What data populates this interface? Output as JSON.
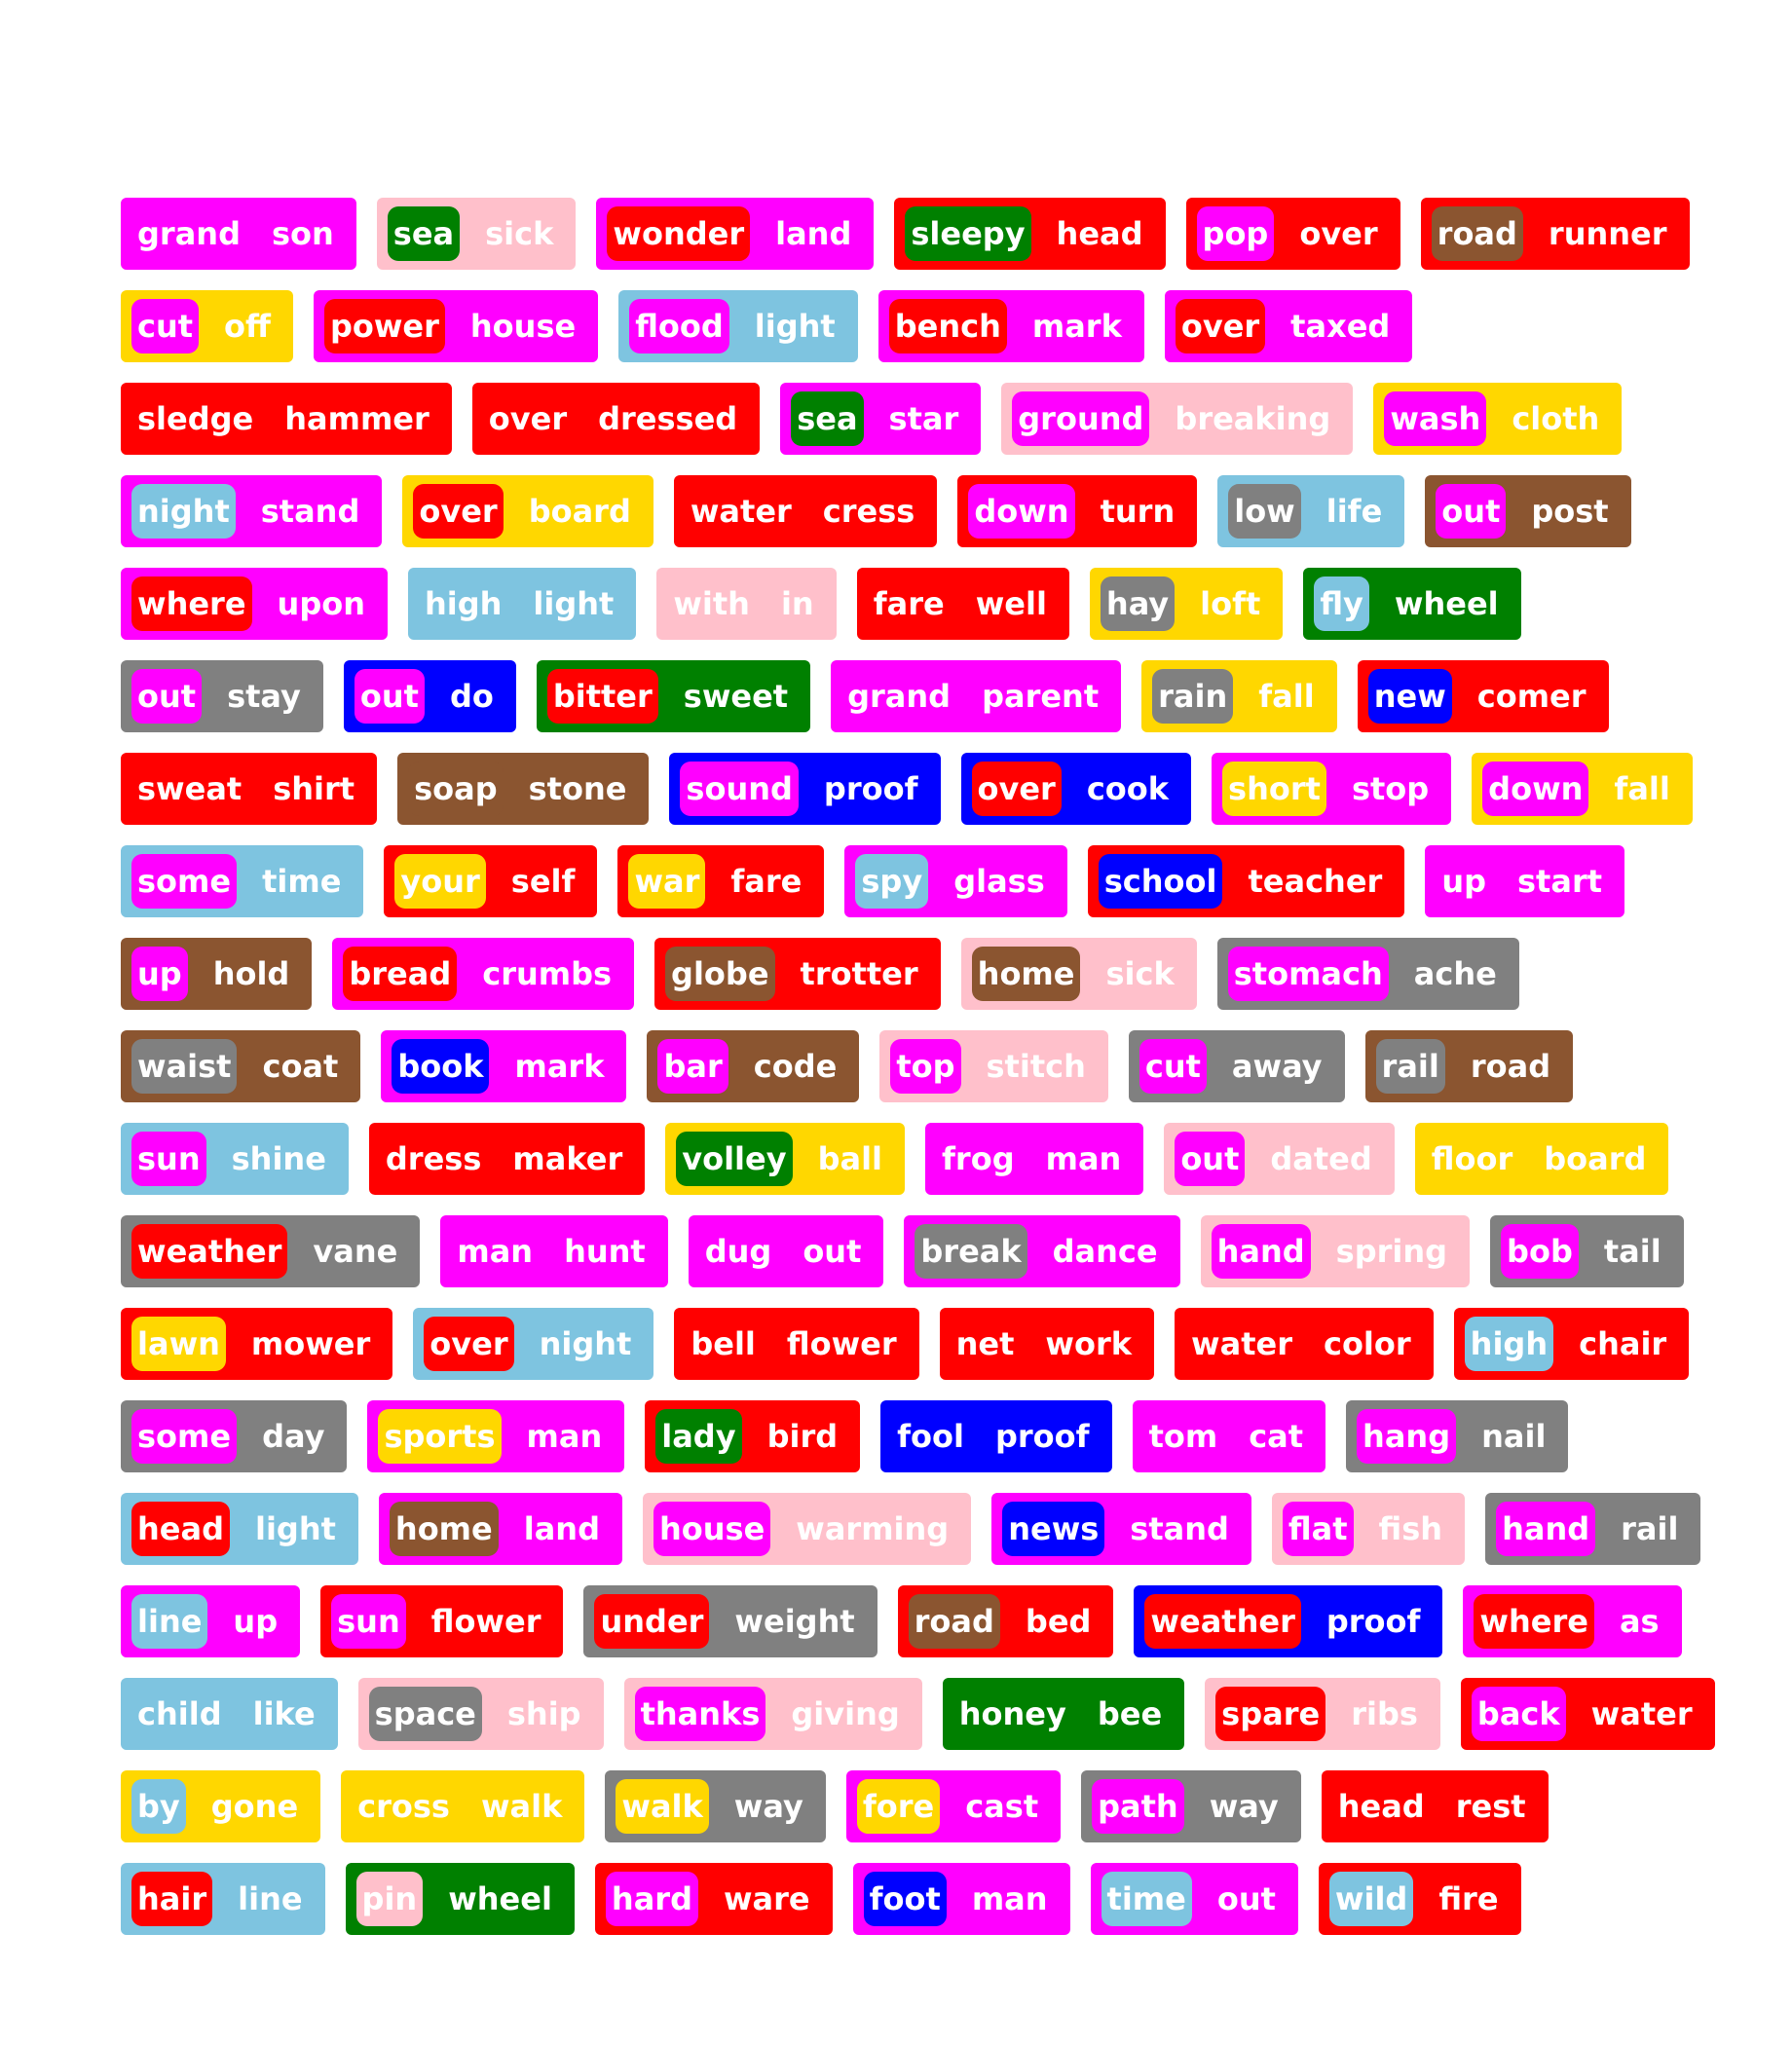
{
  "colors": {
    "magenta": "#ff00ff",
    "pink": "#ffc0cb",
    "red": "#ff0000",
    "green": "#008000",
    "brown": "#8b5530",
    "gold": "#ffd700",
    "sky": "#7ec4e0",
    "gray": "#808080",
    "blue": "#0000ff"
  },
  "rows": [
    [
      {
        "a": "grand",
        "b": "son",
        "bg": "magenta",
        "ibg": "magenta"
      },
      {
        "a": "sea",
        "b": "sick",
        "bg": "pink",
        "ibg": "green"
      },
      {
        "a": "wonder",
        "b": "land",
        "bg": "magenta",
        "ibg": "red"
      },
      {
        "a": "sleepy",
        "b": "head",
        "bg": "red",
        "ibg": "green"
      },
      {
        "a": "pop",
        "b": "over",
        "bg": "red",
        "ibg": "magenta"
      },
      {
        "a": "road",
        "b": "runner",
        "bg": "red",
        "ibg": "brown"
      }
    ],
    [
      {
        "a": "cut",
        "b": "off",
        "bg": "gold",
        "ibg": "magenta"
      },
      {
        "a": "power",
        "b": "house",
        "bg": "magenta",
        "ibg": "red"
      },
      {
        "a": "flood",
        "b": "light",
        "bg": "sky",
        "ibg": "magenta"
      },
      {
        "a": "bench",
        "b": "mark",
        "bg": "magenta",
        "ibg": "red"
      },
      {
        "a": "over",
        "b": "taxed",
        "bg": "magenta",
        "ibg": "red"
      }
    ],
    [
      {
        "a": "sledge",
        "b": "hammer",
        "bg": "red",
        "ibg": "red"
      },
      {
        "a": "over",
        "b": "dressed",
        "bg": "red",
        "ibg": "red"
      },
      {
        "a": "sea",
        "b": "star",
        "bg": "magenta",
        "ibg": "green"
      },
      {
        "a": "ground",
        "b": "breaking",
        "bg": "pink",
        "ibg": "magenta"
      },
      {
        "a": "wash",
        "b": "cloth",
        "bg": "gold",
        "ibg": "magenta"
      }
    ],
    [
      {
        "a": "night",
        "b": "stand",
        "bg": "magenta",
        "ibg": "sky"
      },
      {
        "a": "over",
        "b": "board",
        "bg": "gold",
        "ibg": "red"
      },
      {
        "a": "water",
        "b": "cress",
        "bg": "red",
        "ibg": "red"
      },
      {
        "a": "down",
        "b": "turn",
        "bg": "red",
        "ibg": "magenta"
      },
      {
        "a": "low",
        "b": "life",
        "bg": "sky",
        "ibg": "gray"
      },
      {
        "a": "out",
        "b": "post",
        "bg": "brown",
        "ibg": "magenta"
      }
    ],
    [
      {
        "a": "where",
        "b": "upon",
        "bg": "magenta",
        "ibg": "red"
      },
      {
        "a": "high",
        "b": "light",
        "bg": "sky",
        "ibg": "sky"
      },
      {
        "a": "with",
        "b": "in",
        "bg": "pink",
        "ibg": "pink"
      },
      {
        "a": "fare",
        "b": "well",
        "bg": "red",
        "ibg": "red"
      },
      {
        "a": "hay",
        "b": "loft",
        "bg": "gold",
        "ibg": "gray"
      },
      {
        "a": "fly",
        "b": "wheel",
        "bg": "green",
        "ibg": "sky"
      }
    ],
    [
      {
        "a": "out",
        "b": "stay",
        "bg": "gray",
        "ibg": "magenta"
      },
      {
        "a": "out",
        "b": "do",
        "bg": "blue",
        "ibg": "magenta"
      },
      {
        "a": "bitter",
        "b": "sweet",
        "bg": "green",
        "ibg": "red"
      },
      {
        "a": "grand",
        "b": "parent",
        "bg": "magenta",
        "ibg": "magenta"
      },
      {
        "a": "rain",
        "b": "fall",
        "bg": "gold",
        "ibg": "gray"
      },
      {
        "a": "new",
        "b": "comer",
        "bg": "red",
        "ibg": "blue"
      }
    ],
    [
      {
        "a": "sweat",
        "b": "shirt",
        "bg": "red",
        "ibg": "red"
      },
      {
        "a": "soap",
        "b": "stone",
        "bg": "brown",
        "ibg": "brown"
      },
      {
        "a": "sound",
        "b": "proof",
        "bg": "blue",
        "ibg": "magenta"
      },
      {
        "a": "over",
        "b": "cook",
        "bg": "blue",
        "ibg": "red"
      },
      {
        "a": "short",
        "b": "stop",
        "bg": "magenta",
        "ibg": "gold"
      },
      {
        "a": "down",
        "b": "fall",
        "bg": "gold",
        "ibg": "magenta"
      }
    ],
    [
      {
        "a": "some",
        "b": "time",
        "bg": "sky",
        "ibg": "magenta"
      },
      {
        "a": "your",
        "b": "self",
        "bg": "red",
        "ibg": "gold"
      },
      {
        "a": "war",
        "b": "fare",
        "bg": "red",
        "ibg": "gold"
      },
      {
        "a": "spy",
        "b": "glass",
        "bg": "magenta",
        "ibg": "sky"
      },
      {
        "a": "school",
        "b": "teacher",
        "bg": "red",
        "ibg": "blue"
      },
      {
        "a": "up",
        "b": "start",
        "bg": "magenta",
        "ibg": "magenta"
      }
    ],
    [
      {
        "a": "up",
        "b": "hold",
        "bg": "brown",
        "ibg": "magenta"
      },
      {
        "a": "bread",
        "b": "crumbs",
        "bg": "magenta",
        "ibg": "red"
      },
      {
        "a": "globe",
        "b": "trotter",
        "bg": "red",
        "ibg": "brown"
      },
      {
        "a": "home",
        "b": "sick",
        "bg": "pink",
        "ibg": "brown"
      },
      {
        "a": "stomach",
        "b": "ache",
        "bg": "gray",
        "ibg": "magenta"
      }
    ],
    [
      {
        "a": "waist",
        "b": "coat",
        "bg": "brown",
        "ibg": "gray"
      },
      {
        "a": "book",
        "b": "mark",
        "bg": "magenta",
        "ibg": "blue"
      },
      {
        "a": "bar",
        "b": "code",
        "bg": "brown",
        "ibg": "magenta"
      },
      {
        "a": "top",
        "b": "stitch",
        "bg": "pink",
        "ibg": "magenta"
      },
      {
        "a": "cut",
        "b": "away",
        "bg": "gray",
        "ibg": "magenta"
      },
      {
        "a": "rail",
        "b": "road",
        "bg": "brown",
        "ibg": "gray"
      }
    ],
    [
      {
        "a": "sun",
        "b": "shine",
        "bg": "sky",
        "ibg": "magenta"
      },
      {
        "a": "dress",
        "b": "maker",
        "bg": "red",
        "ibg": "red"
      },
      {
        "a": "volley",
        "b": "ball",
        "bg": "gold",
        "ibg": "green"
      },
      {
        "a": "frog",
        "b": "man",
        "bg": "magenta",
        "ibg": "magenta"
      },
      {
        "a": "out",
        "b": "dated",
        "bg": "pink",
        "ibg": "magenta"
      },
      {
        "a": "floor",
        "b": "board",
        "bg": "gold",
        "ibg": "gold"
      }
    ],
    [
      {
        "a": "weather",
        "b": "vane",
        "bg": "gray",
        "ibg": "red"
      },
      {
        "a": "man",
        "b": "hunt",
        "bg": "magenta",
        "ibg": "magenta"
      },
      {
        "a": "dug",
        "b": "out",
        "bg": "magenta",
        "ibg": "magenta"
      },
      {
        "a": "break",
        "b": "dance",
        "bg": "magenta",
        "ibg": "gray"
      },
      {
        "a": "hand",
        "b": "spring",
        "bg": "pink",
        "ibg": "magenta"
      },
      {
        "a": "bob",
        "b": "tail",
        "bg": "gray",
        "ibg": "magenta"
      }
    ],
    [
      {
        "a": "lawn",
        "b": "mower",
        "bg": "red",
        "ibg": "gold"
      },
      {
        "a": "over",
        "b": "night",
        "bg": "sky",
        "ibg": "red"
      },
      {
        "a": "bell",
        "b": "flower",
        "bg": "red",
        "ibg": "red"
      },
      {
        "a": "net",
        "b": "work",
        "bg": "red",
        "ibg": "red"
      },
      {
        "a": "water",
        "b": "color",
        "bg": "red",
        "ibg": "red"
      },
      {
        "a": "high",
        "b": "chair",
        "bg": "red",
        "ibg": "sky"
      }
    ],
    [
      {
        "a": "some",
        "b": "day",
        "bg": "gray",
        "ibg": "magenta"
      },
      {
        "a": "sports",
        "b": "man",
        "bg": "magenta",
        "ibg": "gold"
      },
      {
        "a": "lady",
        "b": "bird",
        "bg": "red",
        "ibg": "green"
      },
      {
        "a": "fool",
        "b": "proof",
        "bg": "blue",
        "ibg": "blue"
      },
      {
        "a": "tom",
        "b": "cat",
        "bg": "magenta",
        "ibg": "magenta"
      },
      {
        "a": "hang",
        "b": "nail",
        "bg": "gray",
        "ibg": "magenta"
      }
    ],
    [
      {
        "a": "head",
        "b": "light",
        "bg": "sky",
        "ibg": "red"
      },
      {
        "a": "home",
        "b": "land",
        "bg": "magenta",
        "ibg": "brown"
      },
      {
        "a": "house",
        "b": "warming",
        "bg": "pink",
        "ibg": "magenta"
      },
      {
        "a": "news",
        "b": "stand",
        "bg": "magenta",
        "ibg": "blue"
      },
      {
        "a": "flat",
        "b": "fish",
        "bg": "pink",
        "ibg": "magenta"
      },
      {
        "a": "hand",
        "b": "rail",
        "bg": "gray",
        "ibg": "magenta"
      }
    ],
    [
      {
        "a": "line",
        "b": "up",
        "bg": "magenta",
        "ibg": "sky"
      },
      {
        "a": "sun",
        "b": "flower",
        "bg": "red",
        "ibg": "magenta"
      },
      {
        "a": "under",
        "b": "weight",
        "bg": "gray",
        "ibg": "red"
      },
      {
        "a": "road",
        "b": "bed",
        "bg": "red",
        "ibg": "brown"
      },
      {
        "a": "weather",
        "b": "proof",
        "bg": "blue",
        "ibg": "red"
      },
      {
        "a": "where",
        "b": "as",
        "bg": "magenta",
        "ibg": "red"
      }
    ],
    [
      {
        "a": "child",
        "b": "like",
        "bg": "sky",
        "ibg": "sky"
      },
      {
        "a": "space",
        "b": "ship",
        "bg": "pink",
        "ibg": "gray"
      },
      {
        "a": "thanks",
        "b": "giving",
        "bg": "pink",
        "ibg": "magenta"
      },
      {
        "a": "honey",
        "b": "bee",
        "bg": "green",
        "ibg": "green"
      },
      {
        "a": "spare",
        "b": "ribs",
        "bg": "pink",
        "ibg": "red"
      },
      {
        "a": "back",
        "b": "water",
        "bg": "red",
        "ibg": "magenta"
      }
    ],
    [
      {
        "a": "by",
        "b": "gone",
        "bg": "gold",
        "ibg": "sky"
      },
      {
        "a": "cross",
        "b": "walk",
        "bg": "gold",
        "ibg": "gold"
      },
      {
        "a": "walk",
        "b": "way",
        "bg": "gray",
        "ibg": "gold"
      },
      {
        "a": "fore",
        "b": "cast",
        "bg": "magenta",
        "ibg": "gold"
      },
      {
        "a": "path",
        "b": "way",
        "bg": "gray",
        "ibg": "magenta"
      },
      {
        "a": "head",
        "b": "rest",
        "bg": "red",
        "ibg": "red"
      }
    ],
    [
      {
        "a": "hair",
        "b": "line",
        "bg": "sky",
        "ibg": "red"
      },
      {
        "a": "pin",
        "b": "wheel",
        "bg": "green",
        "ibg": "pink"
      },
      {
        "a": "hard",
        "b": "ware",
        "bg": "red",
        "ibg": "magenta"
      },
      {
        "a": "foot",
        "b": "man",
        "bg": "magenta",
        "ibg": "blue"
      },
      {
        "a": "time",
        "b": "out",
        "bg": "magenta",
        "ibg": "sky"
      },
      {
        "a": "wild",
        "b": "fire",
        "bg": "red",
        "ibg": "sky"
      }
    ]
  ]
}
